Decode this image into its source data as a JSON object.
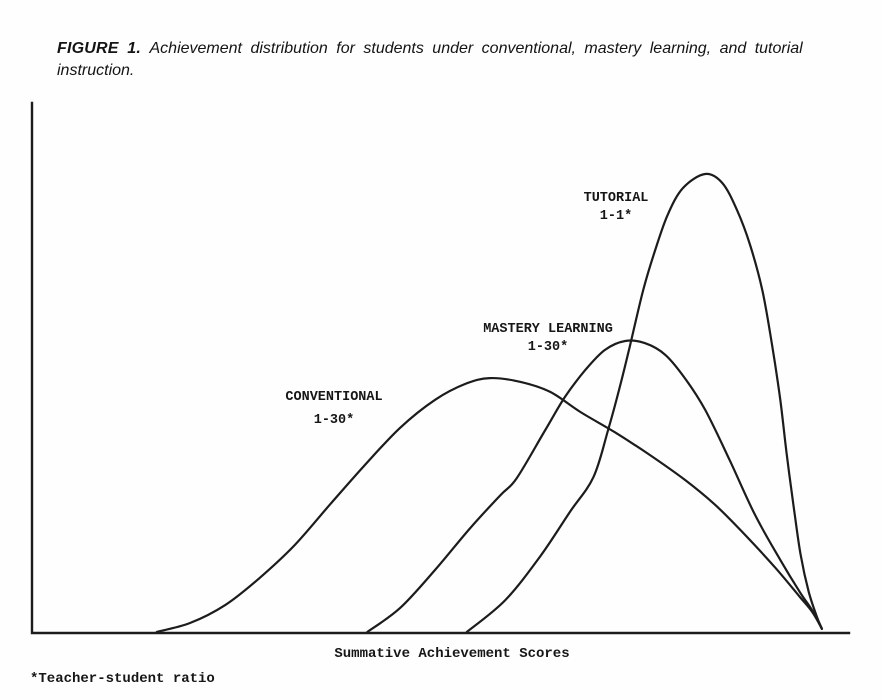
{
  "figure": {
    "caption": {
      "label": "FIGURE 1.",
      "line1": "Achievement distribution for students under conventional, mastery learning, and tutorial",
      "line2": "instruction."
    },
    "footnote": "*Teacher-student ratio"
  },
  "chart_data": {
    "type": "line",
    "title": "Achievement distribution for students under conventional, mastery learning, and tutorial instruction",
    "xlabel": "Summative Achievement Scores",
    "ylabel": "",
    "grid": false,
    "axis_ticks": "none",
    "legend_position": "inline-annotations",
    "axis_color": "#1c1c1c",
    "curve_color": "#1c1c1c",
    "x_scale_note": "normalized achievement score 0-100 (no numeric ticks shown)",
    "y_scale_note": "relative frequency of students, 0-100 of plot height (no numeric ticks shown)",
    "series": [
      {
        "name": "CONVENTIONAL",
        "ratio_label": "1-30*",
        "teacher_student_ratio": "1-30",
        "peak": {
          "x": 56,
          "y": 48
        },
        "points": [
          [
            15.3,
            0.2
          ],
          [
            19.4,
            1.9
          ],
          [
            23.7,
            5.3
          ],
          [
            27.9,
            10.4
          ],
          [
            32.2,
            16.6
          ],
          [
            36.5,
            24.2
          ],
          [
            40.8,
            31.7
          ],
          [
            45.1,
            38.7
          ],
          [
            49.4,
            44.0
          ],
          [
            53.1,
            47.0
          ],
          [
            56.1,
            48.1
          ],
          [
            59.8,
            47.4
          ],
          [
            63.5,
            45.5
          ],
          [
            67.2,
            41.7
          ],
          [
            71.4,
            37.9
          ],
          [
            75.7,
            33.6
          ],
          [
            80.0,
            28.9
          ],
          [
            83.7,
            24.2
          ],
          [
            87.4,
            18.5
          ],
          [
            91.1,
            12.3
          ],
          [
            94.1,
            6.8
          ],
          [
            95.6,
            4.0
          ],
          [
            96.8,
            0.8
          ]
        ]
      },
      {
        "name": "MASTERY LEARNING",
        "ratio_label": "1-30*",
        "teacher_student_ratio": "1-30",
        "peak": {
          "x": 73,
          "y": 55
        },
        "points": [
          [
            41.1,
            0.2
          ],
          [
            45.1,
            4.7
          ],
          [
            49.4,
            11.9
          ],
          [
            53.7,
            19.8
          ],
          [
            57.4,
            26.0
          ],
          [
            59.4,
            29.2
          ],
          [
            62.9,
            38.3
          ],
          [
            65.3,
            44.5
          ],
          [
            67.8,
            49.6
          ],
          [
            70.2,
            53.4
          ],
          [
            72.7,
            55.1
          ],
          [
            75.1,
            54.7
          ],
          [
            77.6,
            52.5
          ],
          [
            80.0,
            48.1
          ],
          [
            82.5,
            42.1
          ],
          [
            85.5,
            32.6
          ],
          [
            88.6,
            22.3
          ],
          [
            91.7,
            13.8
          ],
          [
            94.1,
            7.7
          ],
          [
            95.6,
            4.3
          ],
          [
            96.8,
            0.8
          ]
        ]
      },
      {
        "name": "TUTORIAL",
        "ratio_label": "1-1*",
        "teacher_student_ratio": "1-1",
        "peak": {
          "x": 82.5,
          "y": 87
        },
        "points": [
          [
            53.3,
            0.2
          ],
          [
            58.0,
            6.2
          ],
          [
            62.3,
            14.5
          ],
          [
            65.9,
            22.8
          ],
          [
            68.8,
            29.4
          ],
          [
            70.6,
            38.3
          ],
          [
            72.1,
            46.8
          ],
          [
            73.3,
            54.3
          ],
          [
            74.9,
            64.7
          ],
          [
            76.3,
            71.9
          ],
          [
            77.9,
            78.9
          ],
          [
            79.8,
            84.0
          ],
          [
            82.5,
            86.6
          ],
          [
            84.6,
            84.9
          ],
          [
            86.4,
            79.8
          ],
          [
            88.0,
            73.2
          ],
          [
            89.5,
            64.7
          ],
          [
            90.7,
            54.3
          ],
          [
            91.7,
            44.0
          ],
          [
            92.5,
            33.6
          ],
          [
            93.4,
            23.2
          ],
          [
            94.2,
            14.7
          ],
          [
            95.2,
            7.7
          ],
          [
            96.2,
            3.0
          ],
          [
            96.8,
            0.8
          ]
        ]
      }
    ]
  }
}
